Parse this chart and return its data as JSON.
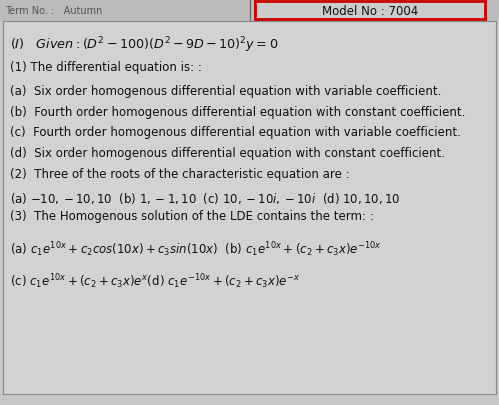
{
  "model_no": "Model No : 7004",
  "bg_color": "#c8c8c8",
  "content_bg": "#d4d4d4",
  "header_bg": "#c0c0c0",
  "text_color": "#111111",
  "red_border": "#cc0000",
  "font_size": 8.5,
  "font_size_given": 9.0,
  "font_size_math": 8.5,
  "q1_opts": [
    "(a)  Six order homogenous differential equation with variable coefficient.",
    "(b)  Fourth order homogenous differential equation with constant coefficient.",
    "(c)  Fourth order homogenous differential equation with variable coefficient.",
    "(d)  Six order homogenous differential equation with constant coefficient."
  ]
}
